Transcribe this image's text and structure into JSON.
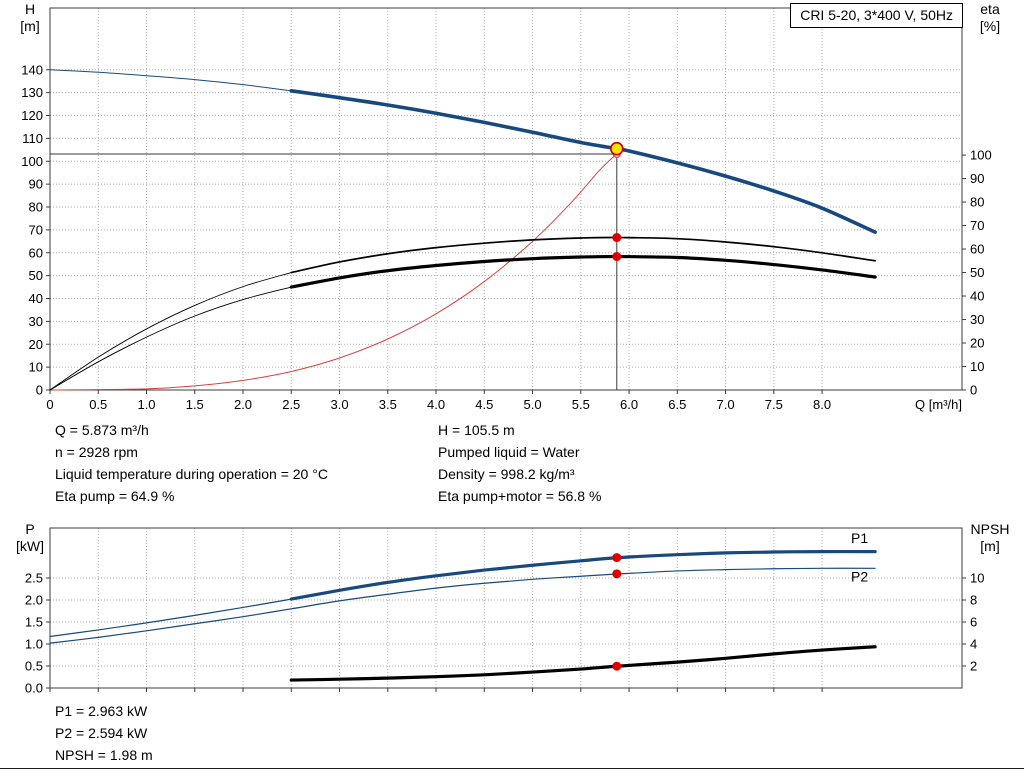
{
  "colors": {
    "curve_blue": "#17497E",
    "label_blue": "#1C5FA5",
    "curve_black": "#000000",
    "curve_red": "#D9403A",
    "marker_red": "#E00000",
    "duty_fill": "#FFE000",
    "duty_ring": "#C00000",
    "grid": "#ADADAD",
    "axis": "#3C3C3C"
  },
  "readouts": {
    "top_left": [
      "Q = 5.873 m³/h",
      "n = 2928 rpm",
      "Liquid temperature during operation = 20 °C",
      "Eta pump = 64.9 %"
    ],
    "top_right": [
      "H = 105.5 m",
      "Pumped liquid = Water",
      "Density = 998.2 kg/m³",
      "Eta pump+motor = 56.8 %"
    ],
    "bottom": [
      "P1 = 2.963 kW",
      "P2 = 2.594 kW",
      "NPSH = 1.98 m"
    ]
  },
  "chart_data": [
    {
      "id": "hq",
      "type": "line",
      "title": "CRI 5-20, 3*400 V, 50Hz",
      "grid": true,
      "x": {
        "title": "Q [m³/h]",
        "min": 0,
        "max": 9.45,
        "decimals": 1,
        "zero_label": "0",
        "show_labels": true,
        "ticks": [
          0,
          0.5,
          1,
          1.5,
          2,
          2.5,
          3,
          3.5,
          4,
          4.5,
          5,
          5.5,
          6,
          6.5,
          7,
          7.5,
          8
        ]
      },
      "y_left": {
        "title_lines": [
          "H",
          "[m]"
        ],
        "min": 0,
        "max": 167,
        "decimals": 0,
        "ticks": [
          0,
          10,
          20,
          30,
          40,
          50,
          60,
          70,
          80,
          90,
          100,
          110,
          120,
          130,
          140
        ]
      },
      "y_right": {
        "title_lines": [
          "eta",
          "[%]"
        ],
        "min": 0,
        "max": 162.6,
        "decimals": 0,
        "ticks": [
          0,
          10,
          20,
          30,
          40,
          50,
          60,
          70,
          80,
          90,
          100
        ]
      },
      "duty": {
        "q": 5.873,
        "point_value": 105.5,
        "level_value": 103.2
      },
      "series": [
        {
          "key": "system-curve",
          "name": "Duty point system curve",
          "axis": "left",
          "color": "#D9403A",
          "width": 1,
          "points": [
            [
              0,
              0
            ],
            [
              1,
              0.5
            ],
            [
              1.5,
              1.8
            ],
            [
              2,
              4.2
            ],
            [
              2.5,
              8.1
            ],
            [
              3,
              14
            ],
            [
              3.5,
              22.3
            ],
            [
              4,
              33.3
            ],
            [
              4.5,
              47.4
            ],
            [
              5,
              65
            ],
            [
              5.4,
              81.9
            ],
            [
              5.7,
              96.3
            ],
            [
              5.873,
              103.2
            ]
          ]
        },
        {
          "key": "eta-pump",
          "name": "Eta pump",
          "axis": "right",
          "color": "#000000",
          "width": 1.7,
          "width_thin": 0.9,
          "thick_from": 2.5,
          "points": [
            [
              0,
              0
            ],
            [
              0.5,
              14
            ],
            [
              1,
              26
            ],
            [
              1.5,
              36
            ],
            [
              2,
              44
            ],
            [
              2.5,
              50
            ],
            [
              3,
              54.5
            ],
            [
              3.5,
              58
            ],
            [
              4,
              60.6
            ],
            [
              4.5,
              62.5
            ],
            [
              5,
              63.9
            ],
            [
              5.5,
              64.7
            ],
            [
              5.873,
              64.9
            ],
            [
              6.5,
              64.4
            ],
            [
              7,
              63
            ],
            [
              7.5,
              61
            ],
            [
              8,
              58.4
            ],
            [
              8.55,
              55
            ]
          ]
        },
        {
          "key": "eta-pump-motor",
          "name": "Eta pump+motor",
          "axis": "right",
          "color": "#000000",
          "width": 3.2,
          "width_thin": 0.9,
          "thick_from": 2.5,
          "points": [
            [
              0,
              0
            ],
            [
              0.5,
              12
            ],
            [
              1,
              22.5
            ],
            [
              1.5,
              31.5
            ],
            [
              2,
              38.5
            ],
            [
              2.5,
              43.8
            ],
            [
              3,
              47.7
            ],
            [
              3.5,
              50.8
            ],
            [
              4,
              53
            ],
            [
              4.5,
              54.7
            ],
            [
              5,
              55.9
            ],
            [
              5.5,
              56.6
            ],
            [
              5.873,
              56.8
            ],
            [
              6.5,
              56.4
            ],
            [
              7,
              55.2
            ],
            [
              7.5,
              53.4
            ],
            [
              8,
              51.1
            ],
            [
              8.55,
              48.1
            ]
          ]
        },
        {
          "key": "head",
          "name": "H (QH curve)",
          "axis": "left",
          "color": "#17497E",
          "width": 3.6,
          "width_thin": 1,
          "thick_from": 2.5,
          "points": [
            [
              0,
              140
            ],
            [
              0.5,
              138.9
            ],
            [
              1,
              137.4
            ],
            [
              1.5,
              135.7
            ],
            [
              2,
              133.5
            ],
            [
              2.5,
              130.8
            ],
            [
              3,
              127.8
            ],
            [
              3.5,
              124.6
            ],
            [
              4,
              121
            ],
            [
              4.5,
              117
            ],
            [
              5,
              112.7
            ],
            [
              5.5,
              108.2
            ],
            [
              5.873,
              105.5
            ],
            [
              6,
              104.5
            ],
            [
              6.5,
              99.3
            ],
            [
              7,
              93.5
            ],
            [
              7.5,
              87
            ],
            [
              8,
              79.5
            ],
            [
              8.55,
              69
            ]
          ]
        }
      ],
      "markers": [
        {
          "key": "system-curve-end-marker",
          "q": 5.873,
          "v": 103.2,
          "axis": "left",
          "r": 3.4,
          "fill": "#FFFFFF",
          "stroke": "#D9403A",
          "stroke_width": 1.3,
          "interactable": false
        },
        {
          "key": "duty-point-marker",
          "q": 5.873,
          "v": 105.5,
          "axis": "left",
          "r": 6,
          "fill": "#FFE000",
          "stroke": "#C00000",
          "stroke_width": 1.6,
          "interactable": true
        },
        {
          "key": "eta-pump-duty-dot",
          "q": 5.873,
          "v": 64.9,
          "axis": "right",
          "r": 4.5,
          "fill": "#E00000",
          "interactable": false
        },
        {
          "key": "eta-pump-motor-duty-dot",
          "q": 5.873,
          "v": 56.8,
          "axis": "right",
          "r": 4.5,
          "fill": "#E00000",
          "interactable": false
        }
      ]
    },
    {
      "id": "power",
      "type": "line",
      "title": "",
      "grid": true,
      "x": {
        "min": 0,
        "max": 9.45,
        "decimals": 1,
        "zero_label": "0",
        "show_labels": false,
        "ticks": [
          0,
          0.5,
          1,
          1.5,
          2,
          2.5,
          3,
          3.5,
          4,
          4.5,
          5,
          5.5,
          6,
          6.5,
          7,
          7.5,
          8
        ]
      },
      "y_left": {
        "title_lines": [
          "P",
          "[kW]"
        ],
        "min": 0,
        "max": 3.636,
        "decimals": 1,
        "ticks": [
          0,
          0.5,
          1,
          1.5,
          2,
          2.5
        ]
      },
      "y_right": {
        "title_lines": [
          "NPSH",
          "[m]"
        ],
        "min": 0,
        "max": 14.545,
        "decimals": 0,
        "ticks": [
          2,
          4,
          6,
          8,
          10
        ]
      },
      "series": [
        {
          "key": "npsh",
          "name": "NPSH",
          "axis": "right",
          "color": "#000000",
          "width": 3.2,
          "points": [
            [
              2.5,
              0.72
            ],
            [
              3,
              0.8
            ],
            [
              3.5,
              0.9
            ],
            [
              4,
              1.03
            ],
            [
              4.5,
              1.2
            ],
            [
              5,
              1.45
            ],
            [
              5.5,
              1.72
            ],
            [
              5.873,
              1.98
            ],
            [
              6.5,
              2.35
            ],
            [
              7,
              2.7
            ],
            [
              7.5,
              3.1
            ],
            [
              8,
              3.45
            ],
            [
              8.55,
              3.75
            ]
          ]
        },
        {
          "key": "p2",
          "name": "P2 (shaft power)",
          "axis": "left",
          "color": "#17497E",
          "width": 1.2,
          "points": [
            [
              0,
              1.02
            ],
            [
              0.5,
              1.15
            ],
            [
              1,
              1.3
            ],
            [
              1.5,
              1.46
            ],
            [
              2,
              1.62
            ],
            [
              2.5,
              1.8
            ],
            [
              3,
              1.98
            ],
            [
              3.5,
              2.13
            ],
            [
              4,
              2.27
            ],
            [
              4.5,
              2.38
            ],
            [
              5,
              2.47
            ],
            [
              5.5,
              2.54
            ],
            [
              5.873,
              2.59
            ],
            [
              6.5,
              2.66
            ],
            [
              7,
              2.69
            ],
            [
              7.5,
              2.71
            ],
            [
              8,
              2.72
            ],
            [
              8.55,
              2.72
            ]
          ]
        },
        {
          "key": "p1",
          "name": "P1 (input power)",
          "axis": "left",
          "color": "#17497E",
          "width": 3.2,
          "width_thin": 1.2,
          "thick_from": 2.5,
          "points": [
            [
              0,
              1.17
            ],
            [
              0.5,
              1.32
            ],
            [
              1,
              1.48
            ],
            [
              1.5,
              1.65
            ],
            [
              2,
              1.83
            ],
            [
              2.5,
              2.02
            ],
            [
              3,
              2.22
            ],
            [
              3.5,
              2.4
            ],
            [
              4,
              2.55
            ],
            [
              4.5,
              2.68
            ],
            [
              5,
              2.79
            ],
            [
              5.5,
              2.89
            ],
            [
              5.873,
              2.96
            ],
            [
              6.5,
              3.03
            ],
            [
              7,
              3.07
            ],
            [
              7.5,
              3.09
            ],
            [
              8,
              3.1
            ],
            [
              8.55,
              3.1
            ]
          ]
        }
      ],
      "labels": [
        {
          "text": "P1",
          "q": 8.3,
          "v": 3.3,
          "axis": "left"
        },
        {
          "text": "P2",
          "q": 8.3,
          "v": 2.42,
          "axis": "left"
        }
      ],
      "markers": [
        {
          "key": "p1-duty-dot",
          "q": 5.873,
          "v": 2.963,
          "axis": "left",
          "r": 4.5,
          "fill": "#E00000",
          "interactable": false
        },
        {
          "key": "p2-duty-dot",
          "q": 5.873,
          "v": 2.594,
          "axis": "left",
          "r": 4.5,
          "fill": "#E00000",
          "interactable": false
        },
        {
          "key": "npsh-duty-dot",
          "q": 5.873,
          "v": 1.98,
          "axis": "right",
          "r": 4.5,
          "fill": "#E00000",
          "interactable": false
        }
      ]
    }
  ]
}
